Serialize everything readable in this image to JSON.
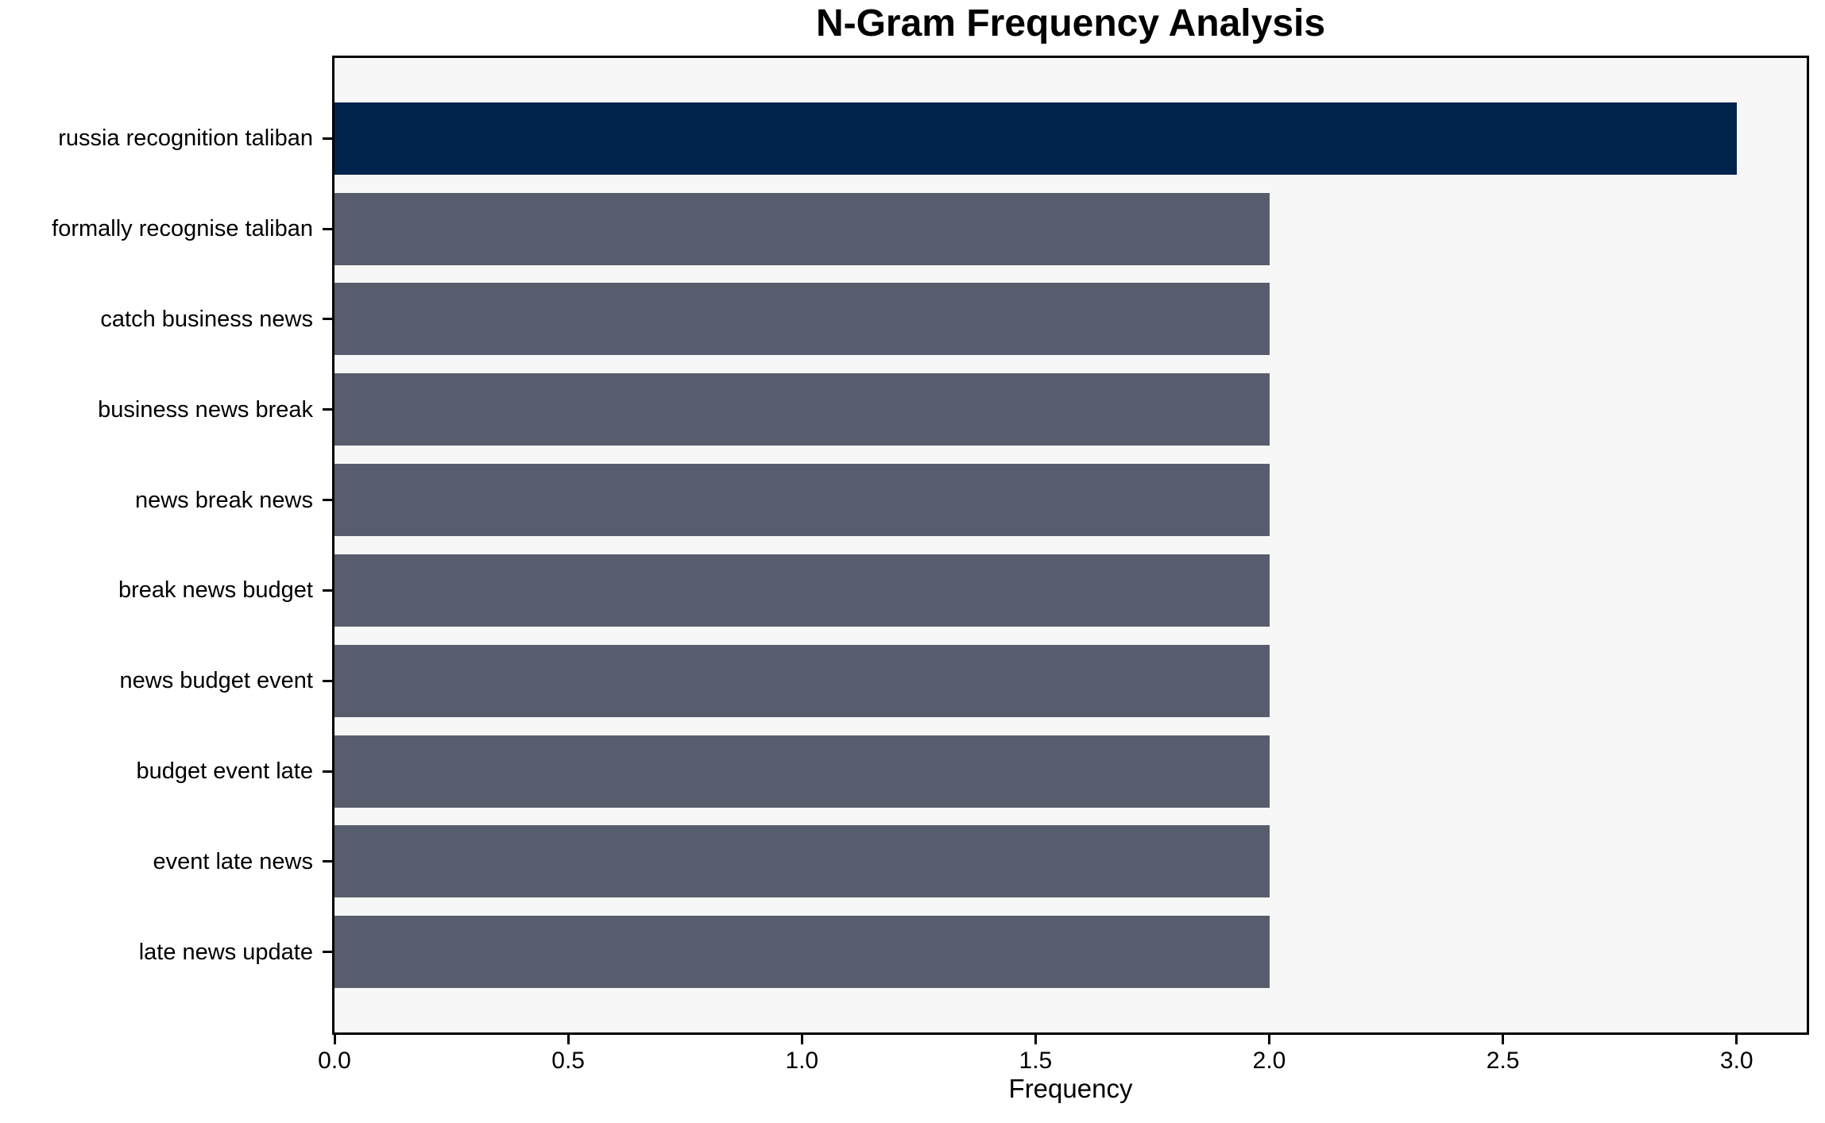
{
  "chart_data": {
    "type": "bar",
    "orientation": "horizontal",
    "title": "N-Gram Frequency Analysis",
    "xlabel": "Frequency",
    "ylabel": "",
    "categories": [
      "russia recognition taliban",
      "formally recognise taliban",
      "catch business news",
      "business news break",
      "news break news",
      "break news budget",
      "news budget event",
      "budget event late",
      "event late news",
      "late news update"
    ],
    "values": [
      3,
      2,
      2,
      2,
      2,
      2,
      2,
      2,
      2,
      2
    ],
    "xlim": [
      0,
      3.15
    ],
    "xticks": [
      "0.0",
      "0.5",
      "1.0",
      "1.5",
      "2.0",
      "2.5",
      "3.0"
    ],
    "grid": false,
    "legend": "none",
    "colors": {
      "highlight_bar": "#02234c",
      "default_bar": "#575d6c",
      "plot_background": "#f7f7f8",
      "figure_background": "#ffffff",
      "axis": "#000000"
    },
    "highlight_index": 0
  }
}
